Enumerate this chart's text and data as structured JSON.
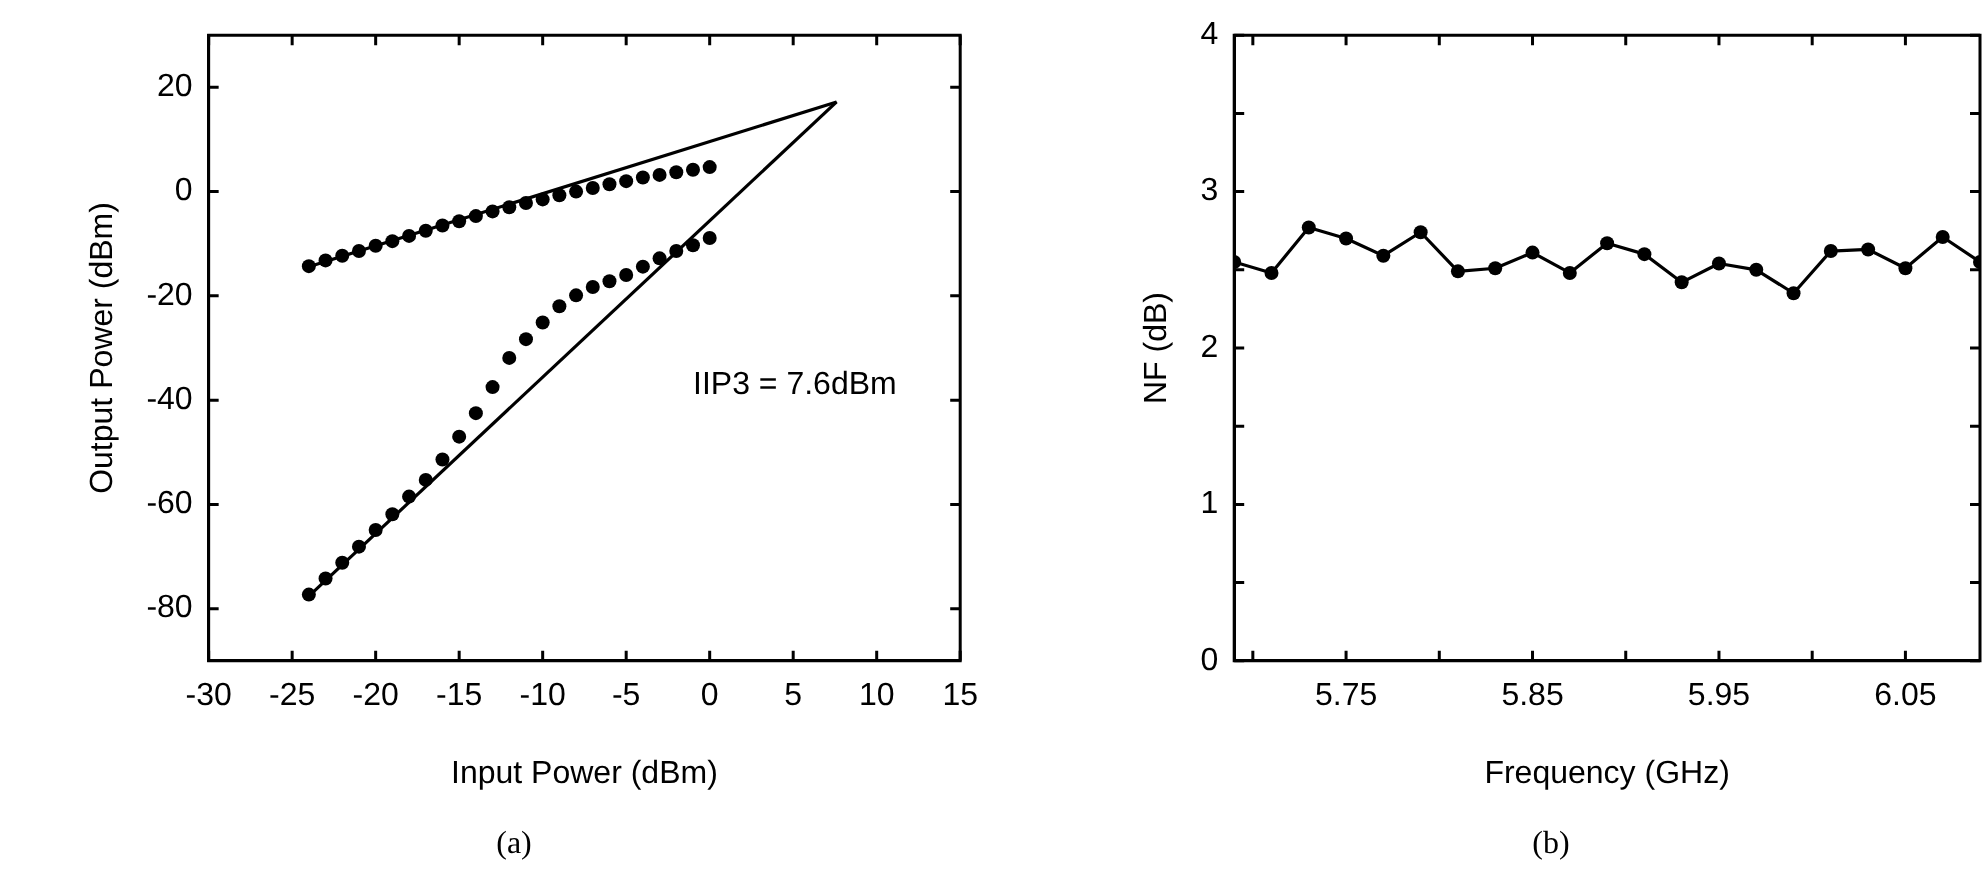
{
  "chart_data": [
    {
      "type": "scatter",
      "title": "(a)",
      "xlabel": "Input Power (dBm)",
      "ylabel": "Output Power (dBm)",
      "xlim": [
        -30,
        15
      ],
      "xticks": [
        -30,
        -25,
        -20,
        -15,
        -10,
        -5,
        0,
        5,
        10,
        15
      ],
      "ylim": [
        -90,
        30
      ],
      "yticks": [
        -80,
        -60,
        -40,
        -20,
        0,
        20
      ],
      "annotations": [
        "IIP3 = 7.6dBm"
      ],
      "series": [
        {
          "color": "#000000",
          "marker": "circle",
          "x": [
            -24,
            -23,
            -22,
            -21,
            -20,
            -19,
            -18,
            -17,
            -16,
            -15,
            -14,
            -13,
            -12,
            -11,
            -10,
            -9,
            -8,
            -7,
            -6,
            -5,
            -4,
            -3,
            -2,
            -1,
            0
          ],
          "values": [
            -14.3,
            -13.2,
            -12.3,
            -11.4,
            -10.4,
            -9.5,
            -8.5,
            -7.5,
            -6.5,
            -5.7,
            -4.7,
            -3.8,
            -3,
            -2.2,
            -1.5,
            -0.7,
            0,
            0.7,
            1.4,
            2,
            2.7,
            3.2,
            3.7,
            4.2,
            4.7
          ]
        },
        {
          "color": "#000000",
          "marker": "circle",
          "x": [
            -24,
            -23,
            -22,
            -21,
            -20,
            -19,
            -18,
            -17,
            -16,
            -15,
            -14,
            -13,
            -12,
            -11,
            -10,
            -9,
            -8,
            -7,
            -6,
            -5,
            -4,
            -3,
            -2,
            -1,
            0
          ],
          "values": [
            -77.3,
            -74.2,
            -71.2,
            -68.1,
            -64.9,
            -61.9,
            -58.5,
            -55.3,
            -51.4,
            -47,
            -42.5,
            -37.5,
            -31.9,
            -28.3,
            -25.1,
            -22,
            -19.9,
            -18.3,
            -17.2,
            -16,
            -14.4,
            -12.8,
            -11.4,
            -10.3,
            -8.9
          ]
        },
        {
          "type": "line",
          "color": "#000000",
          "marker": "none",
          "line_style": "solid",
          "x": [
            -24,
            7.6
          ],
          "values": [
            -14.4,
            17.2
          ]
        },
        {
          "type": "line",
          "color": "#000000",
          "marker": "none",
          "line_style": "solid",
          "x": [
            -24,
            7.6
          ],
          "values": [
            -77.6,
            17.2
          ]
        }
      ]
    },
    {
      "type": "line",
      "title": "(b)",
      "xlabel": "Frequency (GHz)",
      "ylabel": "NF (dB)",
      "xlim": [
        5.69,
        6.09
      ],
      "xticks": [
        {
          "value": 5.7,
          "label": null
        },
        5.75,
        {
          "value": 5.8,
          "label": null
        },
        5.85,
        {
          "value": 5.9,
          "label": null
        },
        5.95,
        {
          "value": 6.0,
          "label": null
        },
        6.05
      ],
      "ylim": [
        0,
        4
      ],
      "yticks": [
        0,
        {
          "value": 0.5,
          "label": null
        },
        1,
        {
          "value": 1.5,
          "label": null
        },
        2,
        {
          "value": 2.5,
          "label": null
        },
        3,
        {
          "value": 3.5,
          "label": null
        },
        4
      ],
      "series": [
        {
          "color": "#000000",
          "marker": "circle",
          "line_style": "solid",
          "x": [
            5.69,
            5.71,
            5.73,
            5.75,
            5.77,
            5.79,
            5.81,
            5.83,
            5.85,
            5.87,
            5.89,
            5.91,
            5.93,
            5.95,
            5.97,
            5.99,
            6.01,
            6.03,
            6.05,
            6.07,
            6.09
          ],
          "values": [
            2.55,
            2.48,
            2.77,
            2.7,
            2.59,
            2.74,
            2.49,
            2.51,
            2.61,
            2.48,
            2.67,
            2.6,
            2.42,
            2.54,
            2.5,
            2.35,
            2.62,
            2.63,
            2.51,
            2.71,
            2.55
          ]
        }
      ]
    }
  ]
}
